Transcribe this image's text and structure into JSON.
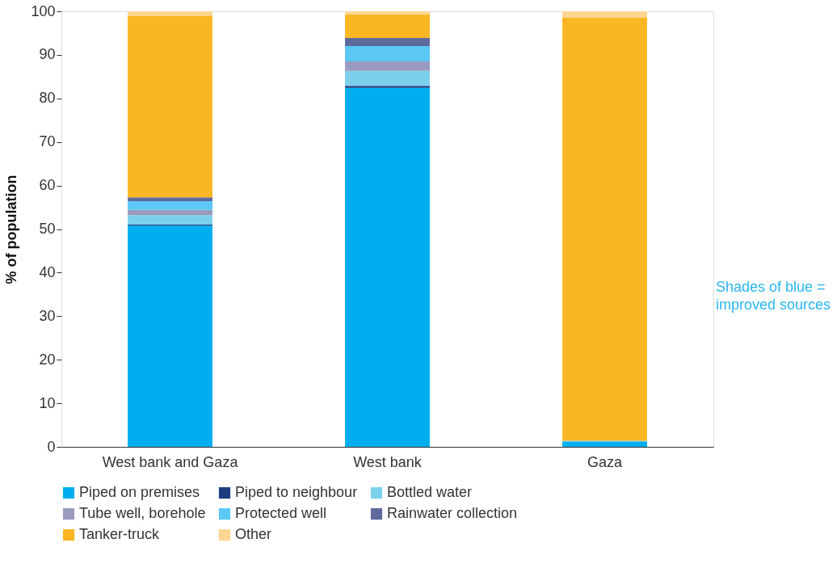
{
  "chart_data": {
    "type": "bar",
    "stacked": true,
    "ylabel": "% of population",
    "categories": [
      "West bank and Gaza",
      "West bank",
      "Gaza"
    ],
    "series": [
      {
        "name": "Piped on premises",
        "color": "#00aeef",
        "values": [
          50.8,
          82.4,
          1.1
        ]
      },
      {
        "name": "Piped to neighbour",
        "color": "#1c3f7f",
        "values": [
          0.2,
          0.5,
          0
        ]
      },
      {
        "name": "Bottled water",
        "color": "#7dd0ec",
        "values": [
          2.2,
          3.4,
          0
        ]
      },
      {
        "name": "Tube well, borehole",
        "color": "#9a9bbf",
        "values": [
          1.2,
          2.2,
          0
        ]
      },
      {
        "name": "Protected well",
        "color": "#5bc8f5",
        "values": [
          2.0,
          3.5,
          0.3
        ]
      },
      {
        "name": "Rainwater collection",
        "color": "#5e6a9c",
        "values": [
          0.9,
          1.9,
          0
        ]
      },
      {
        "name": "Tanker-truck",
        "color": "#fbb624",
        "values": [
          41.6,
          5.4,
          97.1
        ]
      },
      {
        "name": "Other",
        "color": "#fed591",
        "values": [
          1.1,
          0.7,
          1.5
        ]
      }
    ],
    "ylim": [
      0,
      100
    ],
    "yticks": [
      0,
      10,
      20,
      30,
      40,
      50,
      60,
      70,
      80,
      90,
      100
    ],
    "grid": false,
    "legend": "bottom",
    "annotations": [
      "Shades of blue =\nimproved sources"
    ]
  }
}
